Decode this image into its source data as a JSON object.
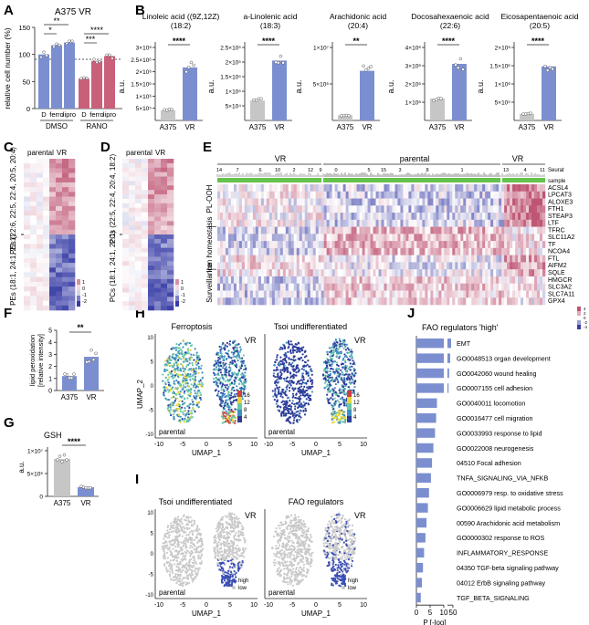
{
  "panel_letters": [
    "A",
    "B",
    "C",
    "D",
    "E",
    "F",
    "G",
    "H",
    "I",
    "J"
  ],
  "panelA": {
    "title": "A375 VR",
    "ylabel": "relative cell number (%)",
    "ticks": [
      "0",
      "50",
      "100",
      "150"
    ],
    "group_labels": [
      "DMSO",
      "RANO"
    ],
    "cat_labels": [
      "D",
      "ferro",
      "lipro",
      "D",
      "ferro",
      "lipro"
    ],
    "sig": [
      "*",
      "**",
      "***",
      "****"
    ]
  },
  "panelB": {
    "ylabel": "a.u.",
    "charts": [
      {
        "title1": "Linoleic acid ((9Z,12Z)",
        "title2": "(18:2)",
        "ticks": [
          "5×10⁵",
          "1×10⁶",
          "1.5×10⁶",
          "2×10⁶",
          "2.5×10⁶",
          "3×10⁶"
        ],
        "sig": "****"
      },
      {
        "title1": "a-Linolenic acid",
        "title2": "(18:3)",
        "ticks": [
          "5×10⁴",
          "1×10⁵",
          "1.5×10⁵",
          "2×10⁵",
          "2.5×10⁵"
        ],
        "sig": "****"
      },
      {
        "title1": "Arachidonic acid",
        "title2": "(20:4)",
        "ticks": [
          "5×10⁶",
          "1×10⁷"
        ],
        "sig": "**"
      },
      {
        "title1": "Docosahexaenoic acid",
        "title2": "(22:6)",
        "ticks": [
          "1×10⁶",
          "2×10⁶",
          "3×10⁶",
          "4×10⁶"
        ],
        "sig": "****"
      },
      {
        "title1": "Eicosapentaenoic acid",
        "title2": "(20:5)",
        "ticks": [
          "5×10⁵",
          "1×10⁶",
          "1.5×10⁶",
          "2×10⁶"
        ],
        "sig": "****"
      }
    ],
    "cats": [
      "A375",
      "VR"
    ]
  },
  "panelC": {
    "col_labels": [
      "parental",
      "VR"
    ],
    "row_labels": [
      "PEs (22:6, 22:5, 22:4, 20:5, 20:4)",
      "PEs (18:1, 24:1, 22:1)"
    ],
    "scale": [
      "1",
      "0",
      "-1",
      "-2"
    ]
  },
  "panelD": {
    "col_labels": [
      "parental",
      "VR"
    ],
    "row_labels": [
      "PCs (22:5, 22:4, 20:4, 18:2)",
      "PCs (18:1, 24:1, 22:1)"
    ],
    "scale": [
      "1",
      "0",
      "-1",
      "-2"
    ]
  },
  "panelE": {
    "group_labels": [
      "VR",
      "parental",
      "VR"
    ],
    "cluster_ids": [
      "14",
      "7",
      "6",
      "10",
      "2",
      "12",
      "9",
      "0",
      "5",
      "15",
      "3",
      "8",
      "1",
      "13",
      "4",
      "11"
    ],
    "seurat_label": "Seurat",
    "sample_label": "sample",
    "categories": [
      "PL-OOH",
      "Iron homeostasis",
      "Surveillance"
    ],
    "genes": [
      "ACSL4",
      "LPCAT3",
      "ALOXE3",
      "FTH1",
      "STEAP3",
      "LTF",
      "TFRC",
      "SLC11A2",
      "TF",
      "NCOA4",
      "FTL",
      "AIFM2",
      "SQLE",
      "HMGCR",
      "SLC3A2",
      "SLC7A11",
      "GPX4"
    ],
    "scale": [
      "4",
      "2",
      "0",
      "-2",
      "-4"
    ]
  },
  "panelF": {
    "ylabel1": "lipid peroxidation",
    "ylabel2": "[relative intensity]",
    "ticks": [
      "0",
      "1",
      "2",
      "3",
      "4",
      "5"
    ],
    "cats": [
      "A375",
      "VR"
    ],
    "sig": "**"
  },
  "panelG": {
    "title": "GSH",
    "ylabel": "a.u.",
    "ticks": [
      "0",
      "5×10⁶",
      "1×10⁷"
    ],
    "cats": [
      "A375",
      "VR"
    ],
    "sig": "****"
  },
  "panelH": {
    "titles": [
      "Ferroptosis",
      "Tsoi undifferentiated"
    ],
    "xlabel": "UMAP_1",
    "ylabel": "UMAP_2",
    "xticks": [
      "-10",
      "-5",
      "0",
      "5",
      "10"
    ],
    "yticks": [
      "-10",
      "-5",
      "0",
      "5",
      "10"
    ],
    "vr_label": "VR",
    "parental_label": "parental",
    "scale": [
      "16",
      "12",
      "8",
      "4"
    ]
  },
  "panelI": {
    "titles": [
      "Tsoi undifferentiated",
      "FAO regulators"
    ],
    "xlabel": "UMAP_1",
    "xticks": [
      "-10",
      "-5",
      "0",
      "5",
      "10"
    ],
    "yticks": [
      "-10",
      "-5",
      "0",
      "5",
      "10"
    ],
    "vr_label": "VR",
    "parental_label": "parental",
    "legend": [
      "high",
      "low"
    ]
  },
  "colors": {
    "blue": "#7b8fd0",
    "red": "#c8607a",
    "grey": "#c6c6c6",
    "darkblue": "#3b4fb5"
  },
  "chart_data": [
    {
      "type": "bar",
      "title": "A375 VR",
      "ylabel": "relative cell number (%)",
      "ylim": [
        0,
        150
      ],
      "categories": [
        "D",
        "ferro",
        "lipro",
        "D",
        "ferro",
        "lipro"
      ],
      "groups": [
        "DMSO",
        "DMSO",
        "DMSO",
        "RANO",
        "RANO",
        "RANO"
      ],
      "values": [
        100,
        117,
        122,
        55,
        88,
        97
      ]
    },
    {
      "type": "bar",
      "title": "Linoleic acid ((9Z,12Z) (18:2)",
      "ylabel": "a.u.",
      "ylim": [
        0,
        3000000
      ],
      "categories": [
        "A375",
        "VR"
      ],
      "values": [
        420000,
        2180000
      ]
    },
    {
      "type": "bar",
      "title": "a-Linolenic acid (18:3)",
      "ylabel": "a.u.",
      "ylim": [
        0,
        250000
      ],
      "categories": [
        "A375",
        "VR"
      ],
      "values": [
        68000,
        205000
      ]
    },
    {
      "type": "bar",
      "title": "Arachidonic acid (20:4)",
      "ylabel": "a.u.",
      "ylim": [
        0,
        10000000
      ],
      "categories": [
        "A375",
        "VR"
      ],
      "values": [
        700000,
        6800000
      ]
    },
    {
      "type": "bar",
      "title": "Docosahexaenoic acid (22:6)",
      "ylabel": "a.u.",
      "ylim": [
        0,
        4000000
      ],
      "categories": [
        "A375",
        "VR"
      ],
      "values": [
        1200000,
        3100000
      ]
    },
    {
      "type": "bar",
      "title": "Eicosapentaenoic acid (20:5)",
      "ylabel": "a.u.",
      "ylim": [
        0,
        2000000
      ],
      "categories": [
        "A375",
        "VR"
      ],
      "values": [
        180000,
        1480000
      ]
    },
    {
      "type": "bar",
      "ylabel": "lipid peroxidation [relative intensity]",
      "ylim": [
        0,
        5
      ],
      "categories": [
        "A375",
        "VR"
      ],
      "values": [
        1.2,
        2.8
      ]
    },
    {
      "type": "bar",
      "title": "GSH",
      "ylabel": "a.u.",
      "ylim": [
        0,
        10000000
      ],
      "categories": [
        "A375",
        "VR"
      ],
      "values": [
        8200000,
        2000000
      ]
    },
    {
      "type": "bar",
      "title": "FAO regulators 'high'",
      "xlabel": "P [-log]",
      "xticks": [
        "0",
        "5",
        "10",
        "50"
      ],
      "categories": [
        "EMT",
        "GO0048513 organ development",
        "GO0042060 wound healing",
        "GO0007155 cell adhesion",
        "GO0040011 locomotion",
        "GO0016477 cell migration",
        "GO0033993 response to lipid",
        "GO0022008 neurogenesis",
        "04510 Focal adhesion",
        "TNFA_SIGNALING_VIA_NFKB",
        "GO0006979 resp. to oxidative stress",
        "GO0006629 lipid metabolic process",
        "00590 Arachidonic acid metabolism",
        "GO0000302 response to ROS",
        "INFLAMMATORY_RESPONSE",
        "04350 TGF-beta signaling pathway",
        "04012 ErbB signaling pathway",
        "TGF_BETA_SIGNALING"
      ],
      "values": [
        48,
        30,
        22,
        18,
        7.5,
        7.2,
        6.8,
        6.2,
        5.7,
        5.3,
        4.6,
        4.2,
        3.7,
        3.3,
        2.8,
        2.4,
        2.0,
        1.6
      ]
    }
  ]
}
